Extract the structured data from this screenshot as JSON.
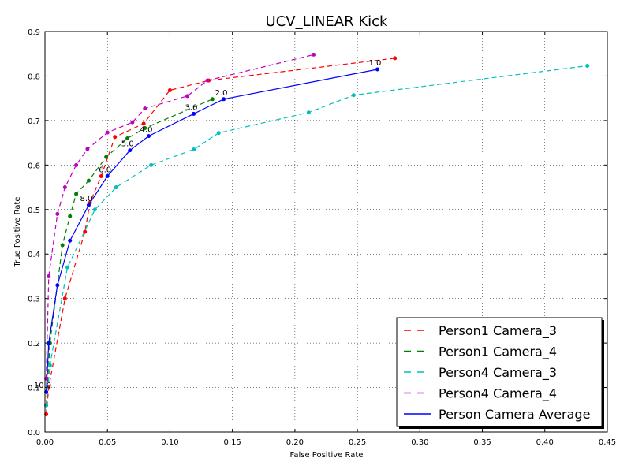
{
  "chart_data": {
    "type": "line",
    "title": "UCV_LINEAR Kick",
    "xlabel": "False Positive Rate",
    "ylabel": "True Positive Rate",
    "xlim": [
      0,
      0.45
    ],
    "ylim": [
      0,
      0.9
    ],
    "xticks": [
      0.0,
      0.05,
      0.1,
      0.15,
      0.2,
      0.25,
      0.3,
      0.35,
      0.4,
      0.45
    ],
    "yticks": [
      0.0,
      0.1,
      0.2,
      0.3,
      0.4,
      0.5,
      0.6,
      0.7,
      0.8,
      0.9
    ],
    "xtick_labels": [
      "0.00",
      "0.05",
      "0.10",
      "0.15",
      "0.20",
      "0.25",
      "0.30",
      "0.35",
      "0.40",
      "0.45"
    ],
    "ytick_labels": [
      "0.0",
      "0.1",
      "0.2",
      "0.3",
      "0.4",
      "0.5",
      "0.6",
      "0.7",
      "0.8",
      "0.9"
    ],
    "grid": true,
    "legend_position": "bottom-right",
    "series": [
      {
        "name": "Person1 Camera_3",
        "color": "#ff0000",
        "style": "dashed",
        "x": [
          0.001,
          0.003,
          0.016,
          0.032,
          0.036,
          0.045,
          0.056,
          0.079,
          0.1,
          0.131,
          0.28
        ],
        "y": [
          0.04,
          0.1,
          0.3,
          0.45,
          0.515,
          0.575,
          0.663,
          0.693,
          0.768,
          0.79,
          0.84
        ]
      },
      {
        "name": "Person1 Camera_4",
        "color": "#008000",
        "style": "dashed",
        "x": [
          0.001,
          0.004,
          0.014,
          0.02,
          0.025,
          0.035,
          0.049,
          0.066,
          0.08,
          0.134
        ],
        "y": [
          0.06,
          0.2,
          0.42,
          0.485,
          0.535,
          0.565,
          0.618,
          0.66,
          0.683,
          0.748
        ]
      },
      {
        "name": "Person4 Camera_3",
        "color": "#00bfbf",
        "style": "dashed",
        "x": [
          0.001,
          0.004,
          0.018,
          0.04,
          0.057,
          0.085,
          0.119,
          0.139,
          0.211,
          0.247,
          0.434
        ],
        "y": [
          0.06,
          0.15,
          0.37,
          0.5,
          0.55,
          0.6,
          0.635,
          0.672,
          0.718,
          0.757,
          0.823
        ]
      },
      {
        "name": "Person4 Camera_4",
        "color": "#bf00bf",
        "style": "dashed",
        "x": [
          0.001,
          0.003,
          0.01,
          0.016,
          0.025,
          0.034,
          0.05,
          0.07,
          0.08,
          0.114,
          0.13,
          0.215
        ],
        "y": [
          0.12,
          0.35,
          0.49,
          0.55,
          0.6,
          0.636,
          0.673,
          0.696,
          0.727,
          0.755,
          0.79,
          0.848
        ]
      },
      {
        "name": "Person Camera Average",
        "color": "#0000ff",
        "style": "solid",
        "x": [
          0.001,
          0.003,
          0.01,
          0.02,
          0.035,
          0.05,
          0.068,
          0.083,
          0.119,
          0.143,
          0.266
        ],
        "y": [
          0.09,
          0.2,
          0.33,
          0.43,
          0.51,
          0.575,
          0.633,
          0.665,
          0.715,
          0.748,
          0.815
        ]
      }
    ],
    "annotations": [
      {
        "text": "10.0",
        "x": 0.0,
        "y": 0.09
      },
      {
        "text": "8.0",
        "x": 0.035,
        "y": 0.51
      },
      {
        "text": "6.0",
        "x": 0.05,
        "y": 0.575
      },
      {
        "text": "5.0",
        "x": 0.068,
        "y": 0.633
      },
      {
        "text": "4.0",
        "x": 0.083,
        "y": 0.665
      },
      {
        "text": "3.0",
        "x": 0.119,
        "y": 0.715
      },
      {
        "text": "2.0",
        "x": 0.143,
        "y": 0.748
      },
      {
        "text": "1.0",
        "x": 0.266,
        "y": 0.815
      }
    ]
  }
}
